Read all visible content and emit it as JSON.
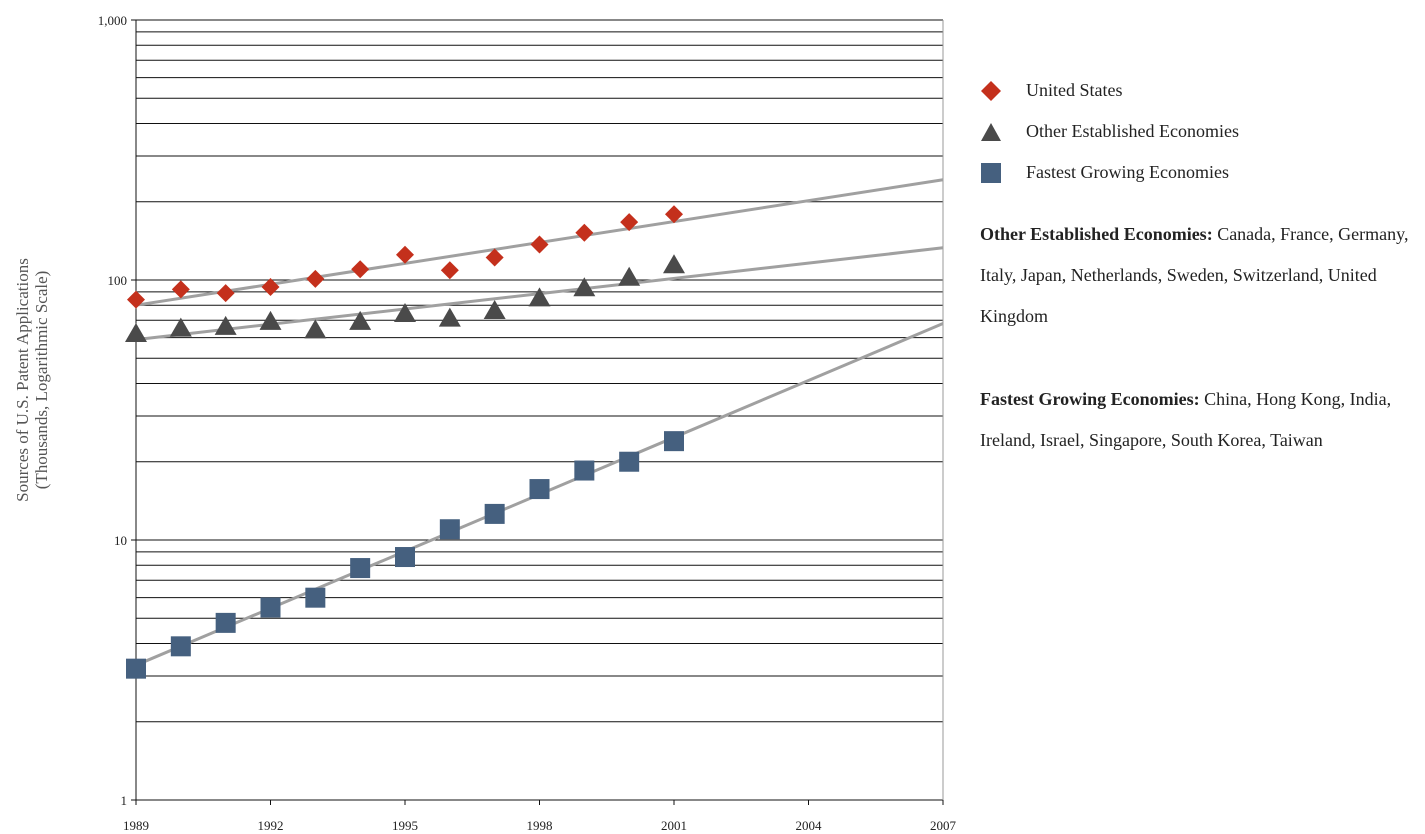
{
  "chart_data": {
    "type": "scatter",
    "ylabel_line1": "Sources of U.S. Patent Applications",
    "ylabel_line2": "(Thousands, Logarithmic Scale)",
    "y_scale": "log",
    "ylim": [
      1,
      1000
    ],
    "xlim": [
      1989,
      2007
    ],
    "x_ticks": [
      1989,
      1992,
      1995,
      1998,
      2001,
      2004,
      2007
    ],
    "y_tick_labels": [
      {
        "value": 1,
        "label": "1"
      },
      {
        "value": 10,
        "label": "10"
      },
      {
        "value": 100,
        "label": "100"
      },
      {
        "value": 1000,
        "label": "1,000"
      }
    ],
    "grid": "horizontal",
    "legend_position": "right",
    "x": [
      1989,
      1990,
      1991,
      1992,
      1993,
      1994,
      1995,
      1996,
      1997,
      1998,
      1999,
      2000,
      2001
    ],
    "series": [
      {
        "name": "United States",
        "marker": "diamond",
        "color": "#c4301c",
        "values": [
          84,
          92,
          89,
          94,
          101,
          110,
          125,
          109,
          122,
          137,
          152,
          167,
          179
        ],
        "trend": [
          [
            1989,
            80
          ],
          [
            2007,
            243
          ]
        ]
      },
      {
        "name": "Other Established Economies",
        "marker": "triangle",
        "color": "#4a4a4a",
        "values": [
          62,
          65,
          66,
          69,
          64,
          69,
          74,
          71,
          76,
          85,
          93,
          102,
          114
        ],
        "trend": [
          [
            1989,
            59
          ],
          [
            2007,
            133
          ]
        ]
      },
      {
        "name": "Fastest Growing Economies",
        "marker": "square",
        "color": "#45607f",
        "values": [
          3.2,
          3.9,
          4.8,
          5.5,
          6.0,
          7.8,
          8.6,
          11.0,
          12.6,
          15.7,
          18.5,
          20.0,
          24.0
        ],
        "trend": [
          [
            1989,
            3.3
          ],
          [
            2007,
            68
          ]
        ]
      }
    ],
    "trendline_color": "#a0a0a0"
  },
  "notes": [
    {
      "title": "Other Established Economies:",
      "text": " Canada, France, Germany, Italy, Japan, Netherlands, Sweden, Switzerland, United Kingdom"
    },
    {
      "title": "Fastest Growing Economies:",
      "text": " China, Hong Kong, India, Ireland, Israel, Singapore, South Korea, Taiwan"
    }
  ]
}
